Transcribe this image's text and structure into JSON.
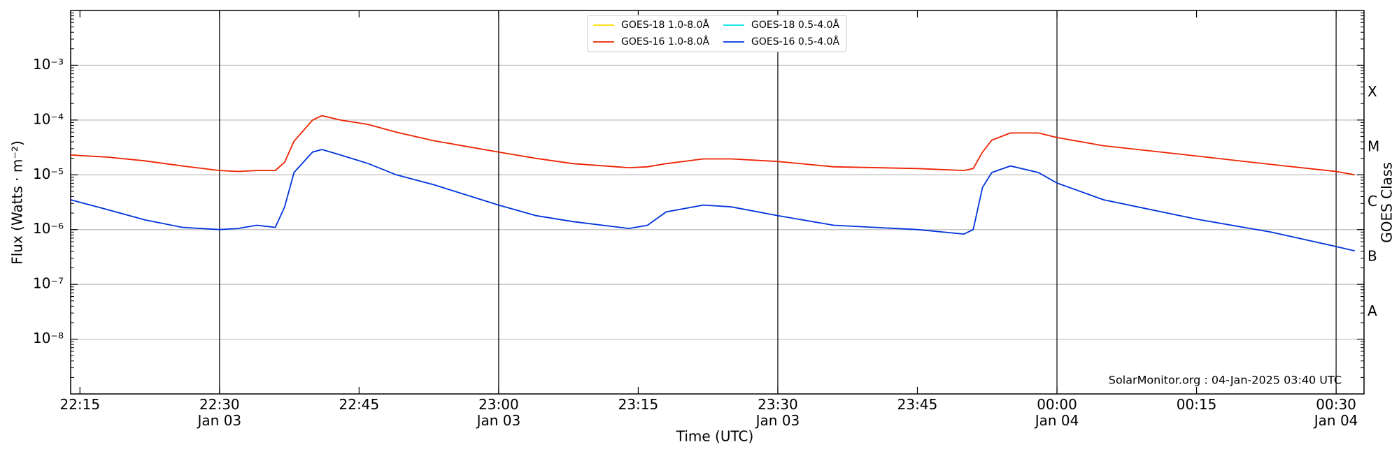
{
  "chart_data": {
    "type": "line",
    "xlabel": "Time (UTC)",
    "ylabel": "Flux (Watts · m⁻²)",
    "y2label": "GOES Class",
    "annotation": "SolarMonitor.org : 04-Jan-2025 03:40 UTC",
    "log_y": true,
    "grid": true,
    "legend": "upper center",
    "x": [
      "Jan 03 22:14",
      "Jan 03 22:18",
      "Jan 03 22:22",
      "Jan 03 22:26",
      "Jan 03 22:30",
      "Jan 03 22:32",
      "Jan 03 22:34",
      "Jan 03 22:36",
      "Jan 03 22:37",
      "Jan 03 22:38",
      "Jan 03 22:40",
      "Jan 03 22:41",
      "Jan 03 22:43",
      "Jan 03 22:46",
      "Jan 03 22:49",
      "Jan 03 22:53",
      "Jan 03 23:00",
      "Jan 03 23:04",
      "Jan 03 23:08",
      "Jan 03 23:14",
      "Jan 03 23:16",
      "Jan 03 23:18",
      "Jan 03 23:22",
      "Jan 03 23:25",
      "Jan 03 23:30",
      "Jan 03 23:36",
      "Jan 03 23:45",
      "Jan 03 23:50",
      "Jan 03 23:51",
      "Jan 03 23:52",
      "Jan 03 23:53",
      "Jan 03 23:55",
      "Jan 03 23:58",
      "Jan 04 00:00",
      "Jan 04 00:05",
      "Jan 04 00:15",
      "Jan 04 00:23",
      "Jan 04 00:30",
      "Jan 04 00:32"
    ],
    "series": [
      {
        "name": "GOES-18 1.0-8.0Å",
        "color": "#ffdd00",
        "values": [
          null,
          null,
          null,
          null,
          null,
          null,
          null,
          null,
          null,
          null,
          null,
          null,
          null,
          null,
          null,
          null,
          null,
          null,
          null,
          null,
          null,
          null,
          null,
          null,
          null,
          null,
          null,
          null,
          null,
          null,
          null,
          null,
          null,
          null,
          null,
          null,
          null,
          null,
          null
        ]
      },
      {
        "name": "GOES-16 1.0-8.0Å",
        "color": "#ee2200",
        "values": [
          2.3e-05,
          2.1e-05,
          1.8e-05,
          1.45e-05,
          1.2e-05,
          1.15e-05,
          1.2e-05,
          1.2e-05,
          1.7e-05,
          4.1e-05,
          0.0001,
          0.00012,
          0.0001,
          8.3e-05,
          6e-05,
          4.2e-05,
          2.6e-05,
          2e-05,
          1.6e-05,
          1.35e-05,
          1.4e-05,
          1.6e-05,
          1.95e-05,
          1.95e-05,
          1.75e-05,
          1.4e-05,
          1.3e-05,
          1.2e-05,
          1.3e-05,
          2.6e-05,
          4.3e-05,
          5.8e-05,
          5.8e-05,
          4.8e-05,
          3.4e-05,
          2.2e-05,
          1.55e-05,
          1.15e-05,
          1e-05
        ]
      },
      {
        "name": "GOES-18 0.5-4.0Å",
        "color": "#00e5ee",
        "values": [
          null,
          null,
          null,
          null,
          null,
          null,
          null,
          null,
          null,
          null,
          null,
          null,
          null,
          null,
          null,
          null,
          null,
          null,
          null,
          null,
          null,
          null,
          null,
          null,
          null,
          null,
          null,
          null,
          null,
          null,
          null,
          null,
          null,
          null,
          null,
          null,
          null,
          null,
          null
        ]
      },
      {
        "name": "GOES-16 0.5-4.0Å",
        "color": "#0033dd",
        "values": [
          3.5e-06,
          2.3e-06,
          1.5e-06,
          1.1e-06,
          1e-06,
          1.05e-06,
          1.2e-06,
          1.1e-06,
          2.6e-06,
          1.1e-05,
          2.6e-05,
          2.9e-05,
          2.3e-05,
          1.6e-05,
          1e-05,
          6.6e-06,
          2.8e-06,
          1.8e-06,
          1.4e-06,
          1.05e-06,
          1.2e-06,
          2.1e-06,
          2.8e-06,
          2.6e-06,
          1.8e-06,
          1.2e-06,
          1e-06,
          8.3e-07,
          1e-06,
          5.9e-06,
          1.1e-05,
          1.45e-05,
          1.1e-05,
          7.1e-06,
          3.5e-06,
          1.55e-06,
          9e-07,
          4.9e-07,
          4.1e-07
        ]
      }
    ],
    "xlim": [
      "Jan 03 22:14",
      "Jan 04 00:33"
    ],
    "xticks": [
      {
        "value": "Jan 03 22:15",
        "label": "22:15"
      },
      {
        "value": "Jan 03 22:30",
        "label": "22:30\nJan 03"
      },
      {
        "value": "Jan 03 22:45",
        "label": "22:45"
      },
      {
        "value": "Jan 03 23:00",
        "label": "23:00\nJan 03"
      },
      {
        "value": "Jan 03 23:15",
        "label": "23:15"
      },
      {
        "value": "Jan 03 23:30",
        "label": "23:30\nJan 03"
      },
      {
        "value": "Jan 03 23:45",
        "label": "23:45"
      },
      {
        "value": "Jan 04 00:00",
        "label": "00:00\nJan 04"
      },
      {
        "value": "Jan 04 00:15",
        "label": "00:15"
      },
      {
        "value": "Jan 04 00:30",
        "label": "00:30\nJan 04"
      }
    ],
    "ylim": [
      1e-09,
      0.01
    ],
    "yticks": [
      {
        "value": 1e-08,
        "label": "10⁻⁸"
      },
      {
        "value": 1e-07,
        "label": "10⁻⁷"
      },
      {
        "value": 1e-06,
        "label": "10⁻⁶"
      },
      {
        "value": 1e-05,
        "label": "10⁻⁵"
      },
      {
        "value": 0.0001,
        "label": "10⁻⁴"
      },
      {
        "value": 0.001,
        "label": "10⁻³"
      }
    ],
    "y2ticks": [
      {
        "value": 0.0001,
        "label": "X"
      },
      {
        "value": 1e-05,
        "label": "M"
      },
      {
        "value": 1e-06,
        "label": "C"
      },
      {
        "value": 1e-07,
        "label": "B"
      },
      {
        "value": 1e-08,
        "label": "A"
      }
    ]
  }
}
